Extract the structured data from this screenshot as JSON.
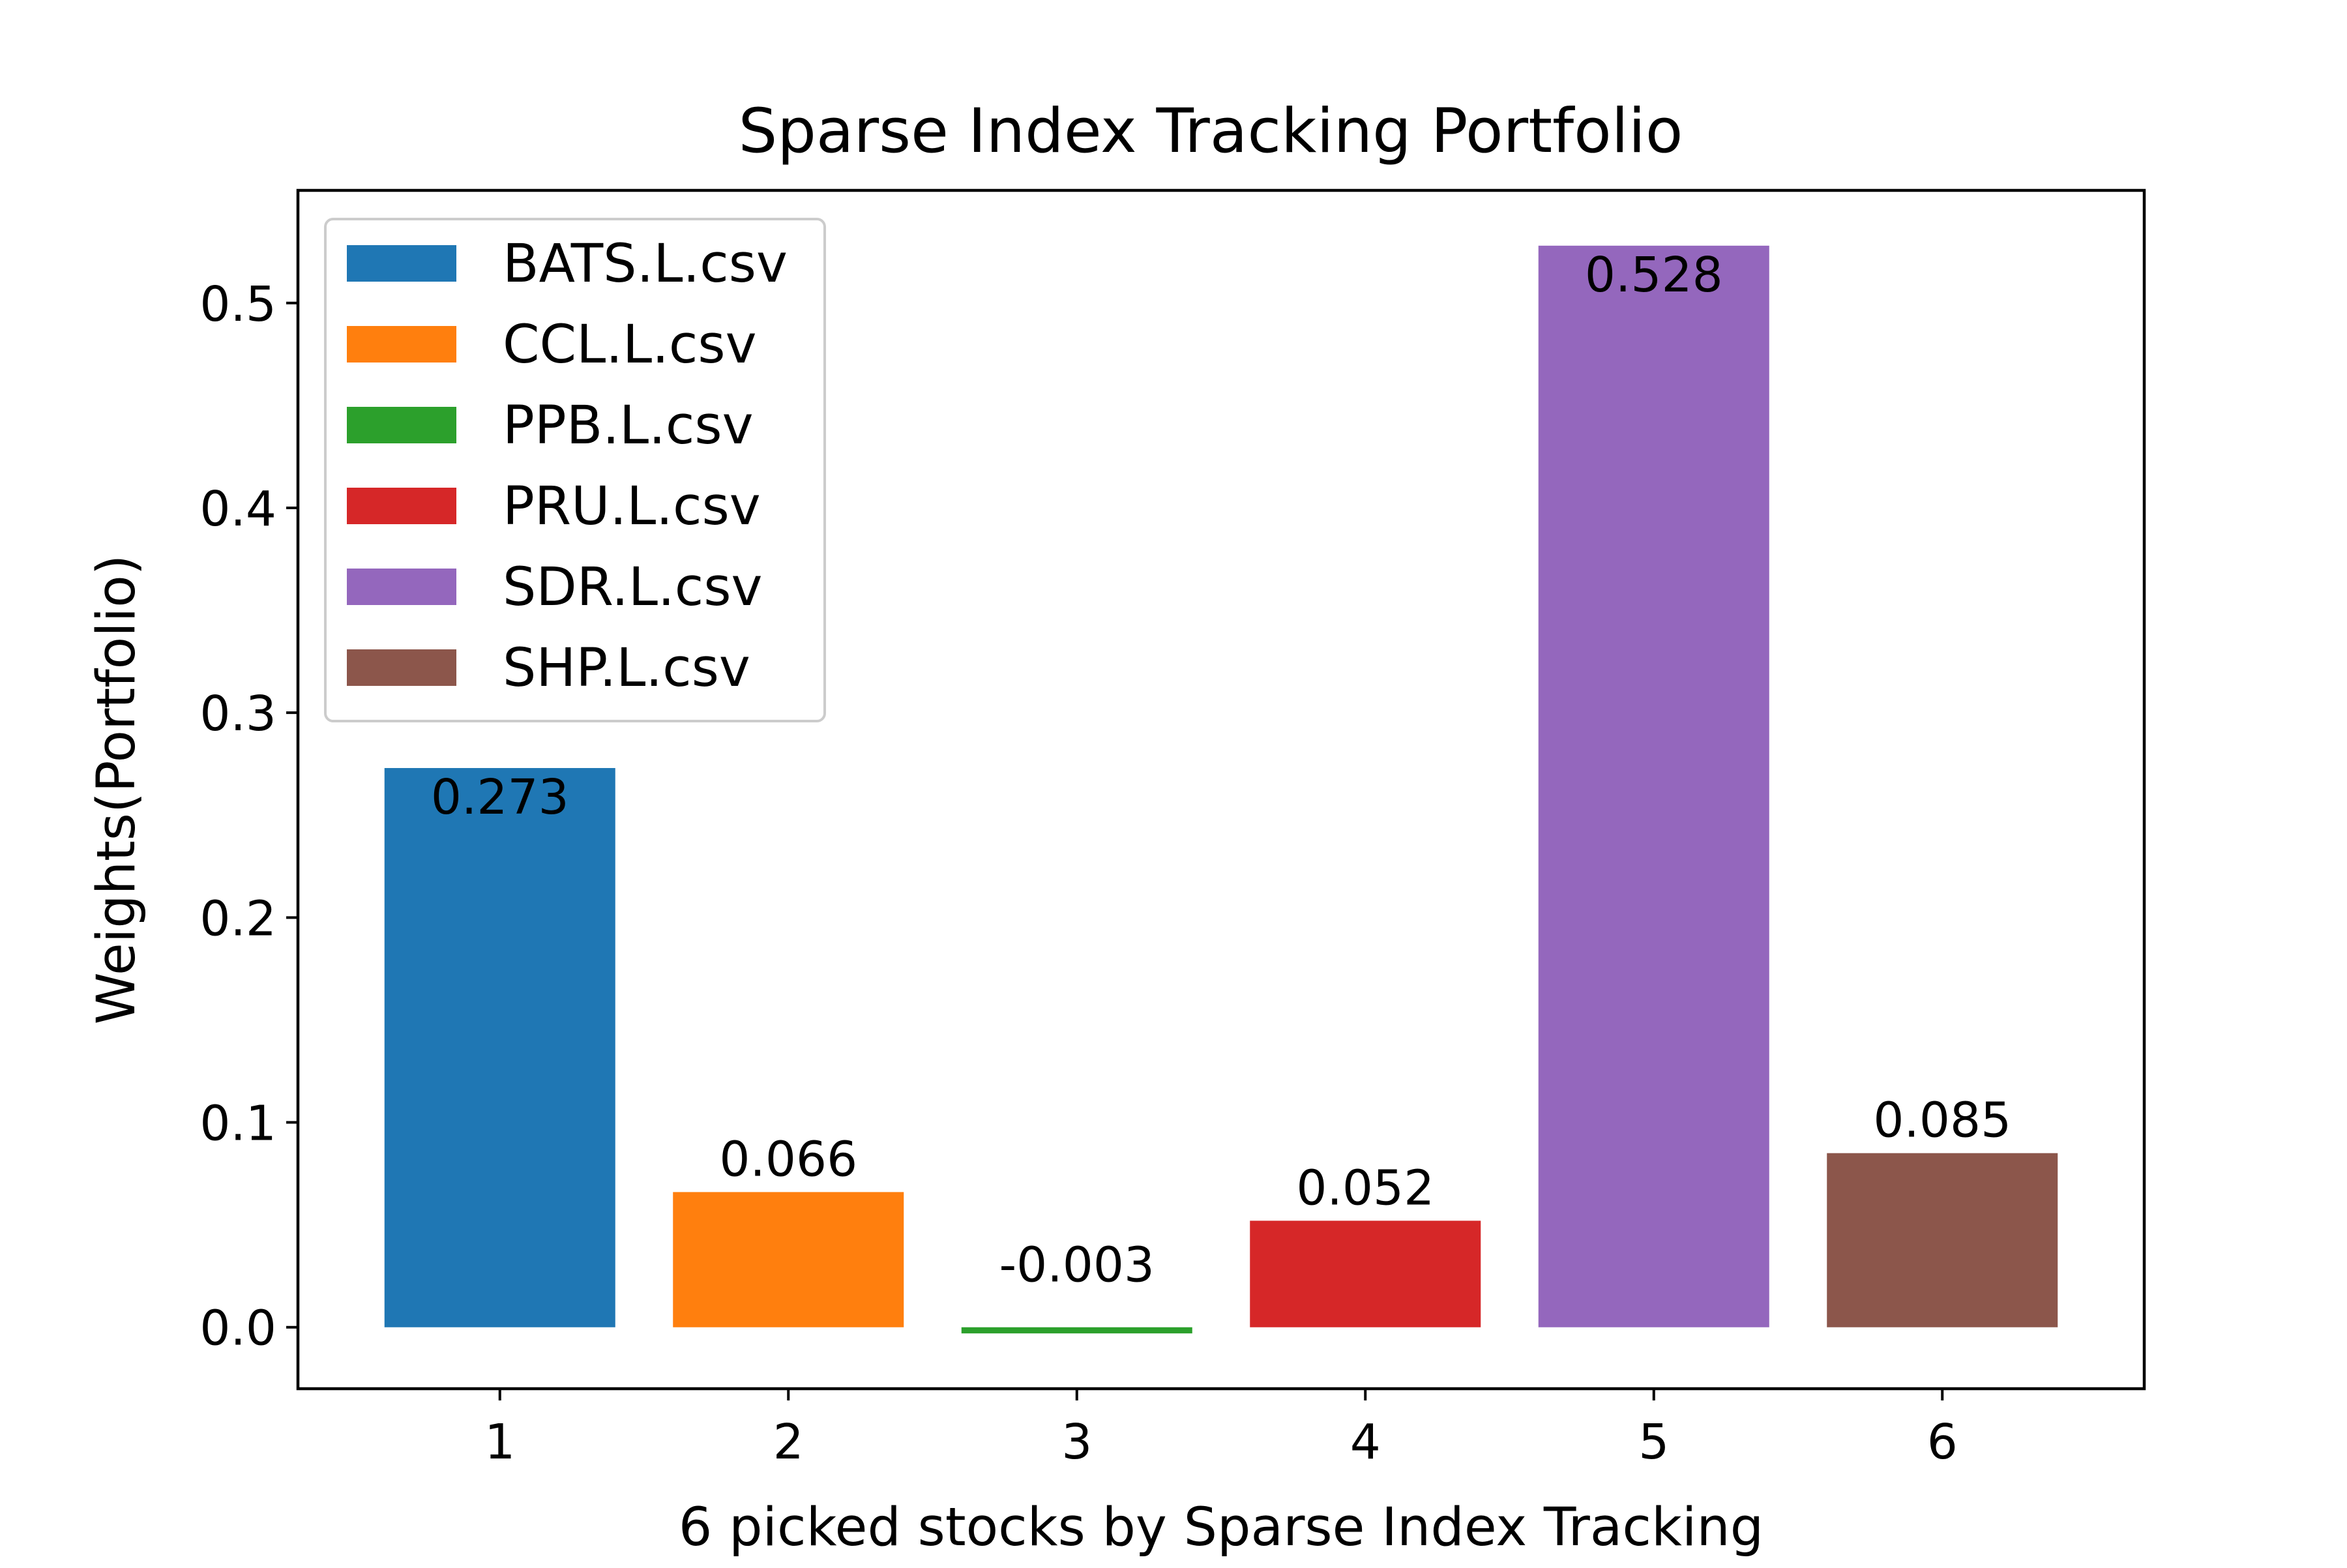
{
  "chart_data": {
    "type": "bar",
    "title": "Sparse Index Tracking Portfolio",
    "xlabel": "6 picked stocks by Sparse Index Tracking",
    "ylabel": "Weights(Portfolio)",
    "categories": [
      "1",
      "2",
      "3",
      "4",
      "5",
      "6"
    ],
    "values": [
      0.273,
      0.066,
      -0.003,
      0.052,
      0.528,
      0.085
    ],
    "data_labels": [
      "0.273",
      "0.066",
      "-0.003",
      "0.052",
      "0.528",
      "0.085"
    ],
    "series_names": [
      "BATS.L.csv",
      "CCL.L.csv",
      "PPB.L.csv",
      "PRU.L.csv",
      "SDR.L.csv",
      "SHP.L.csv"
    ],
    "colors": [
      "#1f77b4",
      "#ff7f0e",
      "#2ca02c",
      "#d62728",
      "#9467bd",
      "#8c564b"
    ],
    "yticks": [
      0.0,
      0.1,
      0.2,
      0.3,
      0.4,
      0.5
    ],
    "ytick_labels": [
      "0.0",
      "0.1",
      "0.2",
      "0.3",
      "0.4",
      "0.5"
    ],
    "ylim": [
      -0.03,
      0.555
    ],
    "xlim": [
      0.3,
      6.7
    ],
    "grid": false,
    "legend_position": "top-left"
  }
}
